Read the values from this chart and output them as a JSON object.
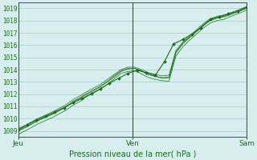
{
  "title": "",
  "xlabel": "Pression niveau de la mer( hPa )",
  "bg_color": "#d8eeee",
  "grid_color": "#aacccc",
  "line_color": "#1a6b1a",
  "text_color": "#1a6b1a",
  "ylim": [
    1008.5,
    1019.5
  ],
  "yticks": [
    1009,
    1010,
    1011,
    1012,
    1013,
    1014,
    1015,
    1016,
    1017,
    1018,
    1019
  ],
  "xtick_labels": [
    "Jeu",
    "Ven",
    "Sam"
  ],
  "xtick_positions": [
    0.0,
    0.5,
    1.0
  ],
  "line1_x": [
    0.0,
    0.03,
    0.06,
    0.09,
    0.12,
    0.15,
    0.18,
    0.21,
    0.24,
    0.27,
    0.3,
    0.33,
    0.36,
    0.39,
    0.42,
    0.45,
    0.48,
    0.51,
    0.54,
    0.57,
    0.6,
    0.63,
    0.66,
    0.69,
    0.72,
    0.75,
    0.78,
    0.81,
    0.84,
    0.87,
    0.9,
    0.93,
    0.96,
    1.0
  ],
  "line1_y": [
    1008.7,
    1009.0,
    1009.3,
    1009.6,
    1009.85,
    1010.1,
    1010.4,
    1010.7,
    1011.1,
    1011.4,
    1011.8,
    1012.1,
    1012.4,
    1012.8,
    1013.25,
    1013.7,
    1013.85,
    1013.9,
    1013.65,
    1013.35,
    1013.2,
    1013.1,
    1013.05,
    1015.1,
    1015.85,
    1016.4,
    1016.9,
    1017.4,
    1017.8,
    1018.0,
    1018.1,
    1018.35,
    1018.55,
    1018.85
  ],
  "line2_x": [
    0.0,
    0.03,
    0.06,
    0.09,
    0.12,
    0.15,
    0.18,
    0.21,
    0.24,
    0.27,
    0.3,
    0.33,
    0.36,
    0.39,
    0.42,
    0.45,
    0.48,
    0.51,
    0.54,
    0.57,
    0.6,
    0.63,
    0.66,
    0.69,
    0.72,
    0.75,
    0.78,
    0.81,
    0.84,
    0.87,
    0.9,
    0.93,
    0.96,
    1.0
  ],
  "line2_y": [
    1009.0,
    1009.25,
    1009.55,
    1009.85,
    1010.1,
    1010.35,
    1010.65,
    1010.95,
    1011.35,
    1011.65,
    1012.0,
    1012.3,
    1012.6,
    1013.0,
    1013.4,
    1013.85,
    1014.05,
    1014.1,
    1013.9,
    1013.6,
    1013.45,
    1013.3,
    1013.3,
    1015.35,
    1016.1,
    1016.6,
    1017.1,
    1017.6,
    1018.0,
    1018.2,
    1018.3,
    1018.5,
    1018.7,
    1019.0
  ],
  "line3_x": [
    0.0,
    0.03,
    0.06,
    0.09,
    0.12,
    0.15,
    0.18,
    0.21,
    0.24,
    0.27,
    0.3,
    0.33,
    0.36,
    0.39,
    0.42,
    0.45,
    0.48,
    0.51,
    0.54,
    0.57,
    0.6,
    0.63,
    0.66,
    0.69,
    0.72,
    0.75,
    0.78,
    0.81,
    0.84,
    0.87,
    0.9,
    0.93,
    0.96,
    1.0
  ],
  "line3_y": [
    1009.2,
    1009.45,
    1009.75,
    1010.05,
    1010.3,
    1010.55,
    1010.85,
    1011.15,
    1011.55,
    1011.85,
    1012.2,
    1012.5,
    1012.8,
    1013.2,
    1013.6,
    1014.0,
    1014.2,
    1014.2,
    1014.0,
    1013.75,
    1013.6,
    1013.5,
    1013.55,
    1015.55,
    1016.25,
    1016.75,
    1017.25,
    1017.75,
    1018.15,
    1018.35,
    1018.45,
    1018.65,
    1018.85,
    1019.15
  ],
  "line4_x": [
    0.0,
    0.03,
    0.06,
    0.09,
    0.12,
    0.15,
    0.18,
    0.21,
    0.24,
    0.27,
    0.3,
    0.33,
    0.36,
    0.39,
    0.42,
    0.45,
    0.48,
    0.51,
    0.54,
    0.57,
    0.6,
    0.63,
    0.66,
    0.69,
    0.72,
    0.75,
    0.78,
    0.81,
    0.84,
    0.87,
    0.9,
    0.93,
    0.96,
    1.0
  ],
  "line4_y": [
    1009.05,
    1009.3,
    1009.6,
    1009.9,
    1010.15,
    1010.4,
    1010.7,
    1011.0,
    1011.4,
    1011.7,
    1012.05,
    1012.35,
    1012.65,
    1013.05,
    1013.5,
    1013.9,
    1014.1,
    1014.1,
    1013.9,
    1013.6,
    1013.45,
    1013.35,
    1013.4,
    1015.45,
    1016.15,
    1016.65,
    1017.15,
    1017.65,
    1018.05,
    1018.25,
    1018.35,
    1018.55,
    1018.75,
    1019.05
  ],
  "line5_x": [
    0.0,
    0.04,
    0.08,
    0.12,
    0.16,
    0.2,
    0.24,
    0.28,
    0.32,
    0.36,
    0.4,
    0.44,
    0.48,
    0.52,
    0.56,
    0.6,
    0.64,
    0.68,
    0.72,
    0.76,
    0.8,
    0.84,
    0.88,
    0.92,
    0.96,
    1.0
  ],
  "line5_y": [
    1009.1,
    1009.5,
    1009.9,
    1010.2,
    1010.55,
    1010.9,
    1011.3,
    1011.65,
    1012.05,
    1012.45,
    1012.9,
    1013.3,
    1013.7,
    1013.95,
    1013.75,
    1013.55,
    1014.65,
    1016.1,
    1016.45,
    1016.9,
    1017.4,
    1018.1,
    1018.3,
    1018.55,
    1018.75,
    1019.1
  ]
}
